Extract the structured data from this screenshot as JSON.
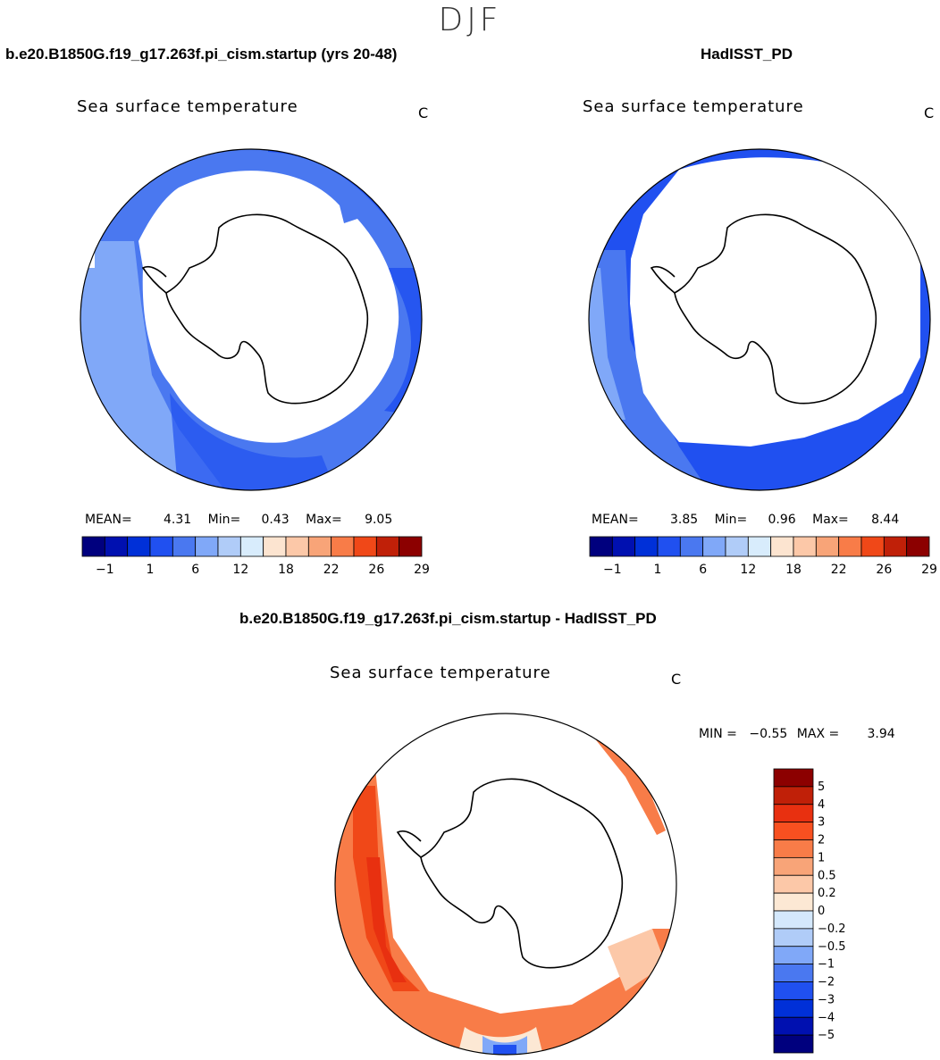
{
  "header": {
    "season": "DJF"
  },
  "panels": [
    {
      "case_title": "b.e20.B1850G.f19_g17.263f.pi_cism.startup (yrs 20-48)",
      "var_title": "Sea surface temperature",
      "units": "C",
      "mean_label": "MEAN=",
      "mean": "4.31",
      "min_label": "Min=",
      "min": "0.43",
      "max_label": "Max=",
      "max": "9.05"
    },
    {
      "case_title": "HadISST_PD",
      "var_title": "Sea surface temperature",
      "units": "C",
      "mean_label": "MEAN=",
      "mean": "3.85",
      "min_label": "Min=",
      "min": "0.96",
      "max_label": "Max=",
      "max": "8.44"
    },
    {
      "case_title": "b.e20.B1850G.f19_g17.263f.pi_cism.startup - HadISST_PD",
      "var_title": "Sea surface temperature",
      "units": "C",
      "min_label": "MIN =",
      "min": "−0.55",
      "max_label": "MAX =",
      "max": "3.94"
    }
  ],
  "chart_data": [
    {
      "type": "heatmap",
      "projection": "south-polar-stereographic",
      "title": "Sea surface temperature",
      "units": "C",
      "stats": {
        "mean": 4.31,
        "min": 0.43,
        "max": 9.05
      },
      "colorbar": {
        "orientation": "horizontal",
        "colors": [
          "#00007e",
          "#0010b0",
          "#0030d8",
          "#2050f0",
          "#4a78f0",
          "#80a8f8",
          "#b0ccf8",
          "#d8ecfc",
          "#fce4d0",
          "#fcc8a8",
          "#f8a478",
          "#f87c48",
          "#f04818",
          "#c02008",
          "#8c0000"
        ],
        "tick_labels": [
          "−1",
          "1",
          "6",
          "12",
          "18",
          "22",
          "26",
          "29"
        ]
      }
    },
    {
      "type": "heatmap",
      "projection": "south-polar-stereographic",
      "title": "Sea surface temperature",
      "units": "C",
      "stats": {
        "mean": 3.85,
        "min": 0.96,
        "max": 8.44
      },
      "colorbar": {
        "orientation": "horizontal",
        "colors": [
          "#00007e",
          "#0010b0",
          "#0030d8",
          "#2050f0",
          "#4a78f0",
          "#80a8f8",
          "#b0ccf8",
          "#d8ecfc",
          "#fce4d0",
          "#fcc8a8",
          "#f8a478",
          "#f87c48",
          "#f04818",
          "#c02008",
          "#8c0000"
        ],
        "tick_labels": [
          "−1",
          "1",
          "6",
          "12",
          "18",
          "22",
          "26",
          "29"
        ]
      }
    },
    {
      "type": "heatmap",
      "projection": "south-polar-stereographic",
      "title": "Sea surface temperature",
      "units": "C",
      "stats": {
        "min": -0.55,
        "max": 3.94
      },
      "colorbar": {
        "orientation": "vertical",
        "colors_top_to_bottom": [
          "#8c0000",
          "#c02008",
          "#e83010",
          "#f85020",
          "#f87c48",
          "#f8a478",
          "#fcc8a8",
          "#fce8d4",
          "#d4e8fc",
          "#b0ccf8",
          "#80a8f8",
          "#4a78f0",
          "#2050f0",
          "#0030d8",
          "#0010b0",
          "#00007e"
        ],
        "tick_labels_top_to_bottom": [
          "5",
          "4",
          "3",
          "2",
          "1",
          "0.5",
          "0.2",
          "0",
          "−0.2",
          "−0.5",
          "−1",
          "−2",
          "−3",
          "−4",
          "−5"
        ]
      }
    }
  ]
}
